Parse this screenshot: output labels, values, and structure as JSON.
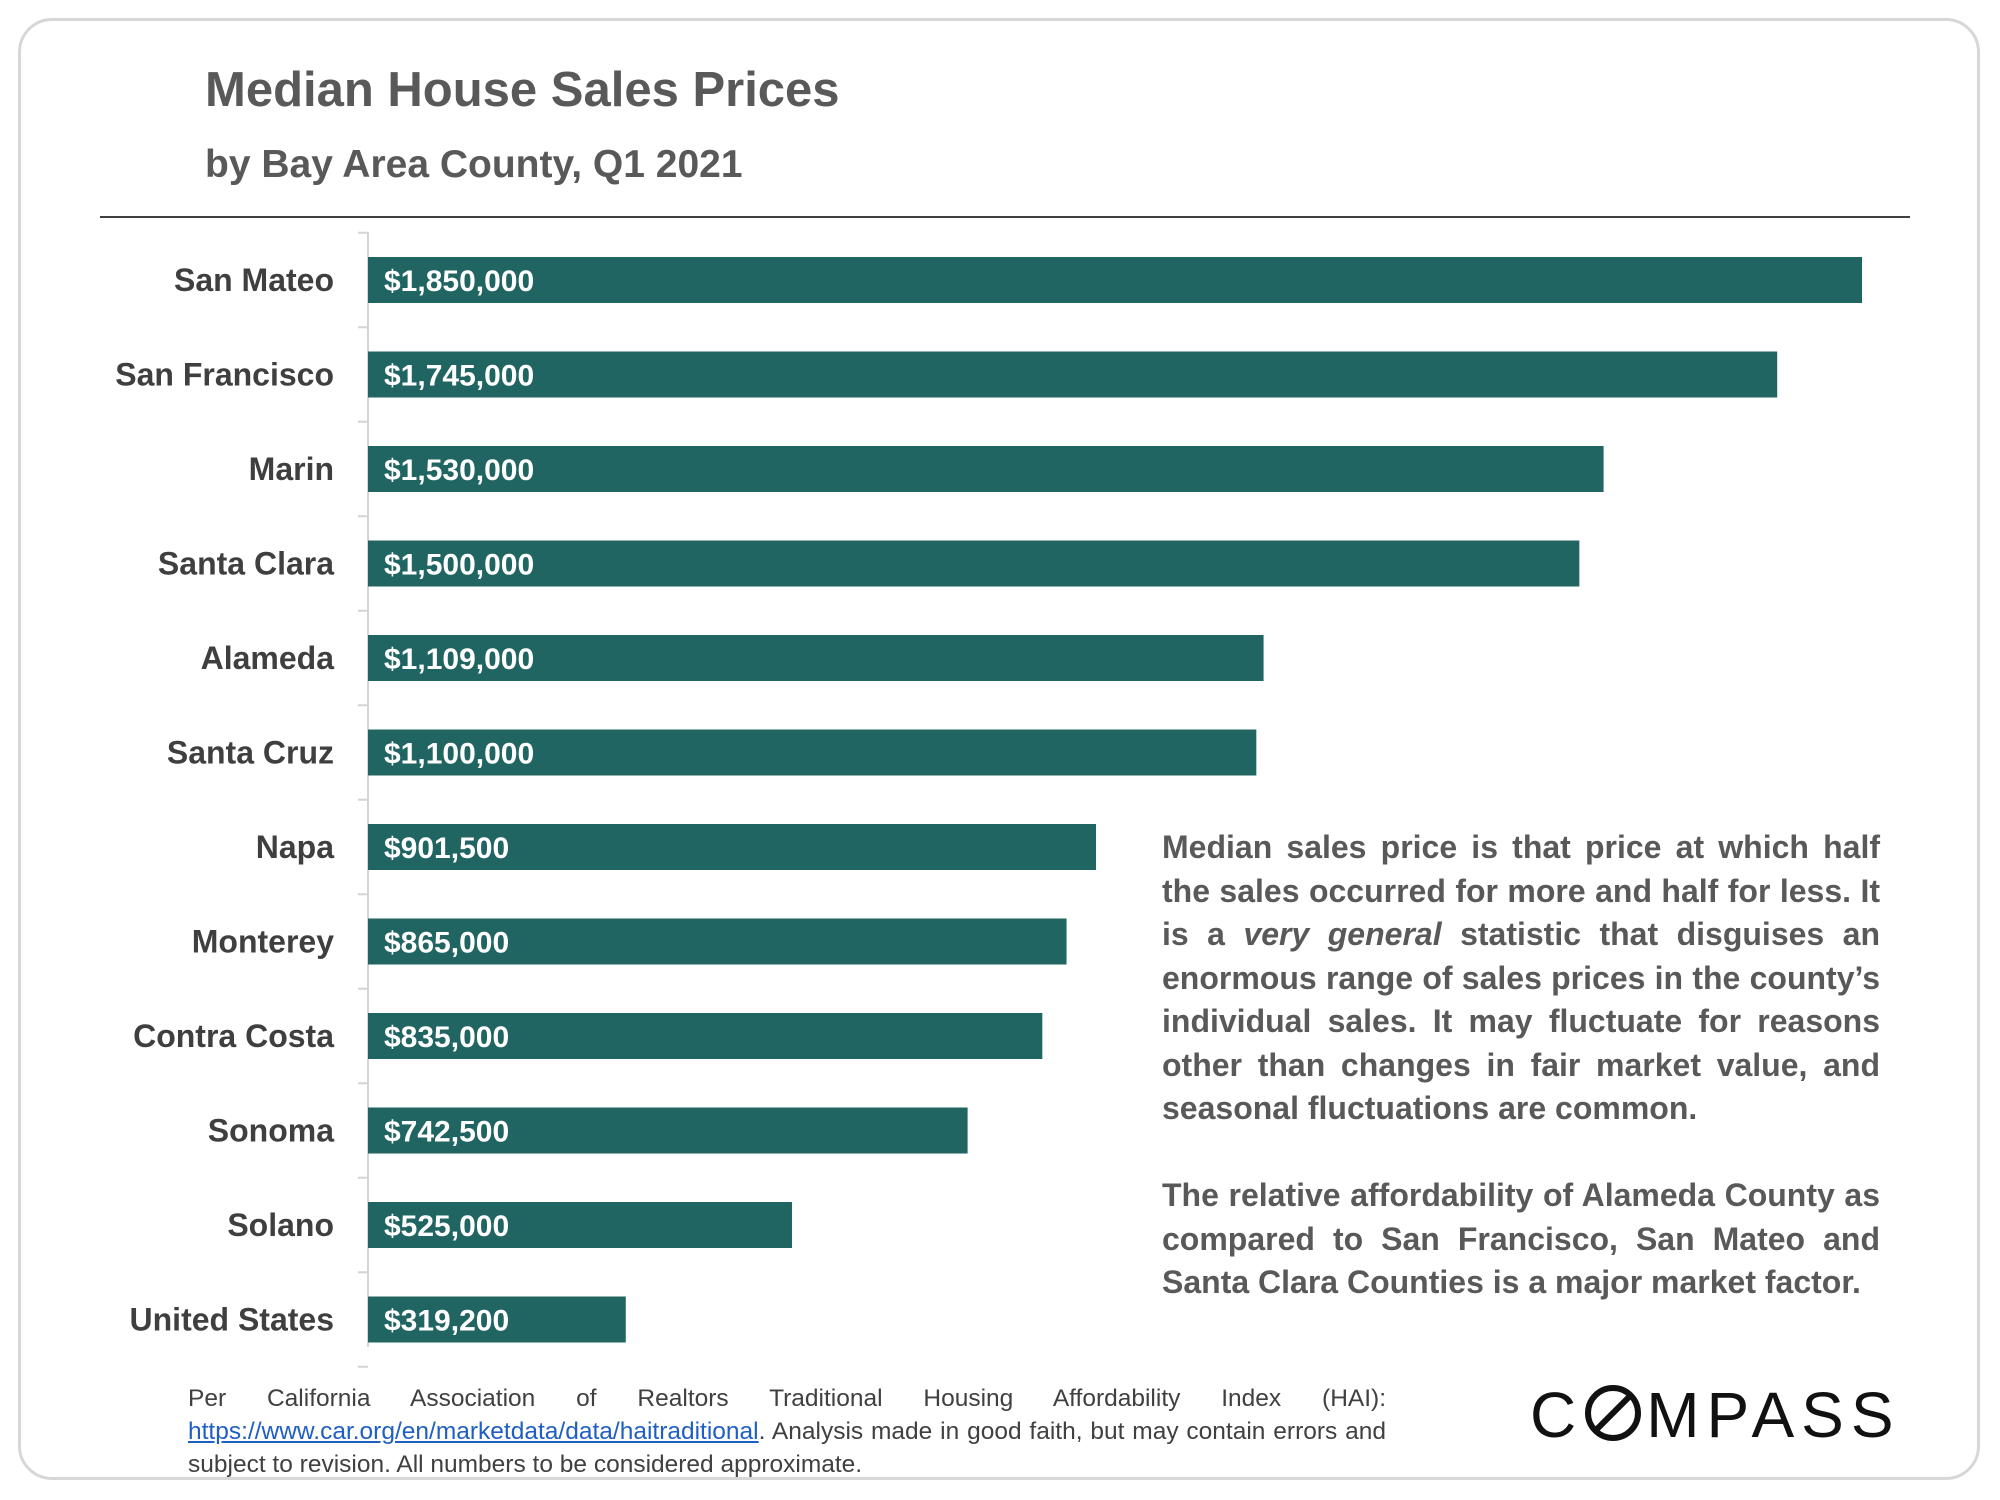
{
  "title": "Median House Sales Prices",
  "subtitle": "by Bay Area County, Q1 2021",
  "colors": {
    "bar": "#216562",
    "bar_label": "#ffffff",
    "text": "#595959"
  },
  "chart_data": {
    "type": "bar",
    "orientation": "horizontal",
    "title": "Median House Sales Prices",
    "subtitle": "by Bay Area County, Q1 2021",
    "categories": [
      "San Mateo",
      "San Francisco",
      "Marin",
      "Santa Clara",
      "Alameda",
      "Santa Cruz",
      "Napa",
      "Monterey",
      "Contra Costa",
      "Sonoma",
      "Solano",
      "United States"
    ],
    "values": [
      1850000,
      1745000,
      1530000,
      1500000,
      1109000,
      1100000,
      901500,
      865000,
      835000,
      742500,
      525000,
      319200
    ],
    "data_labels": [
      "$1,850,000",
      "$1,745,000",
      "$1,530,000",
      "$1,500,000",
      "$1,109,000",
      "$1,100,000",
      "$901,500",
      "$865,000",
      "$835,000",
      "$742,500",
      "$525,000",
      "$319,200"
    ],
    "xlim": [
      0,
      1850000
    ],
    "grid": false,
    "legend": "none"
  },
  "notes": {
    "p1_before": "Median sales price is that price at which half the sales occurred for more and half for less. It is a ",
    "p1_italic": "very general",
    "p1_after": " statistic that disguises an enormous range of sales prices in the county’s individual sales. It may fluctuate for reasons other than changes in fair market value, and seasonal fluctuations are common.",
    "p2": "The relative affordability of Alameda County as compared to San Francisco, San Mateo and Santa Clara Counties is a major market factor."
  },
  "footnote": {
    "before": "Per California Association of Realtors Traditional Housing Affordability Index (HAI): ",
    "link": "https://www.car.org/en/marketdata/data/haitraditional",
    "after": ". Analysis made in good faith, but may contain errors and subject to revision. All numbers to be considered approximate."
  },
  "logo": {
    "left": "C",
    "right": "MPASS"
  }
}
